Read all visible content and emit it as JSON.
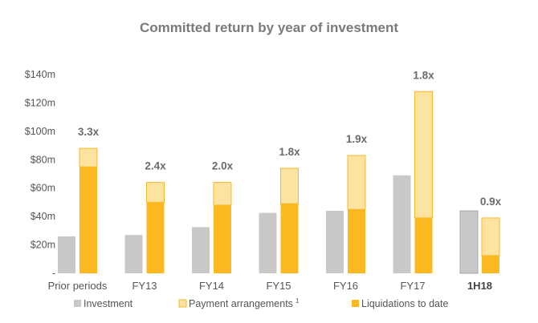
{
  "chart_data": {
    "type": "bar",
    "title": "Committed return by year of investment",
    "ylim": [
      0,
      140
    ],
    "y_ticks": [
      "-",
      "$20m",
      "$40m",
      "$60m",
      "$80m",
      "$100m",
      "$120m",
      "$140m"
    ],
    "categories": [
      "Prior periods",
      "FY13",
      "FY14",
      "FY15",
      "FY16",
      "FY17",
      "1H18"
    ],
    "series": [
      {
        "name": "Investment",
        "color": "#c8c8c8",
        "values": [
          26,
          27,
          32.5,
          42.5,
          44,
          69,
          44
        ]
      },
      {
        "name": "Liquidations to date",
        "color": "#fbb820",
        "values": [
          75,
          50,
          48,
          49,
          45,
          39,
          12.5
        ]
      },
      {
        "name": "Payment arrangements",
        "legend_sup": "1",
        "color": "#fde3a0",
        "values": [
          13,
          14,
          16,
          25,
          38,
          89,
          26.5
        ]
      }
    ],
    "multiples": [
      "3.3x",
      "2.4x",
      "2.0x",
      "1.8x",
      "1.9x",
      "1.8x",
      "0.9x"
    ],
    "bold_categories": [
      "1H18"
    ],
    "legend_position": "bottom",
    "grid": false
  }
}
